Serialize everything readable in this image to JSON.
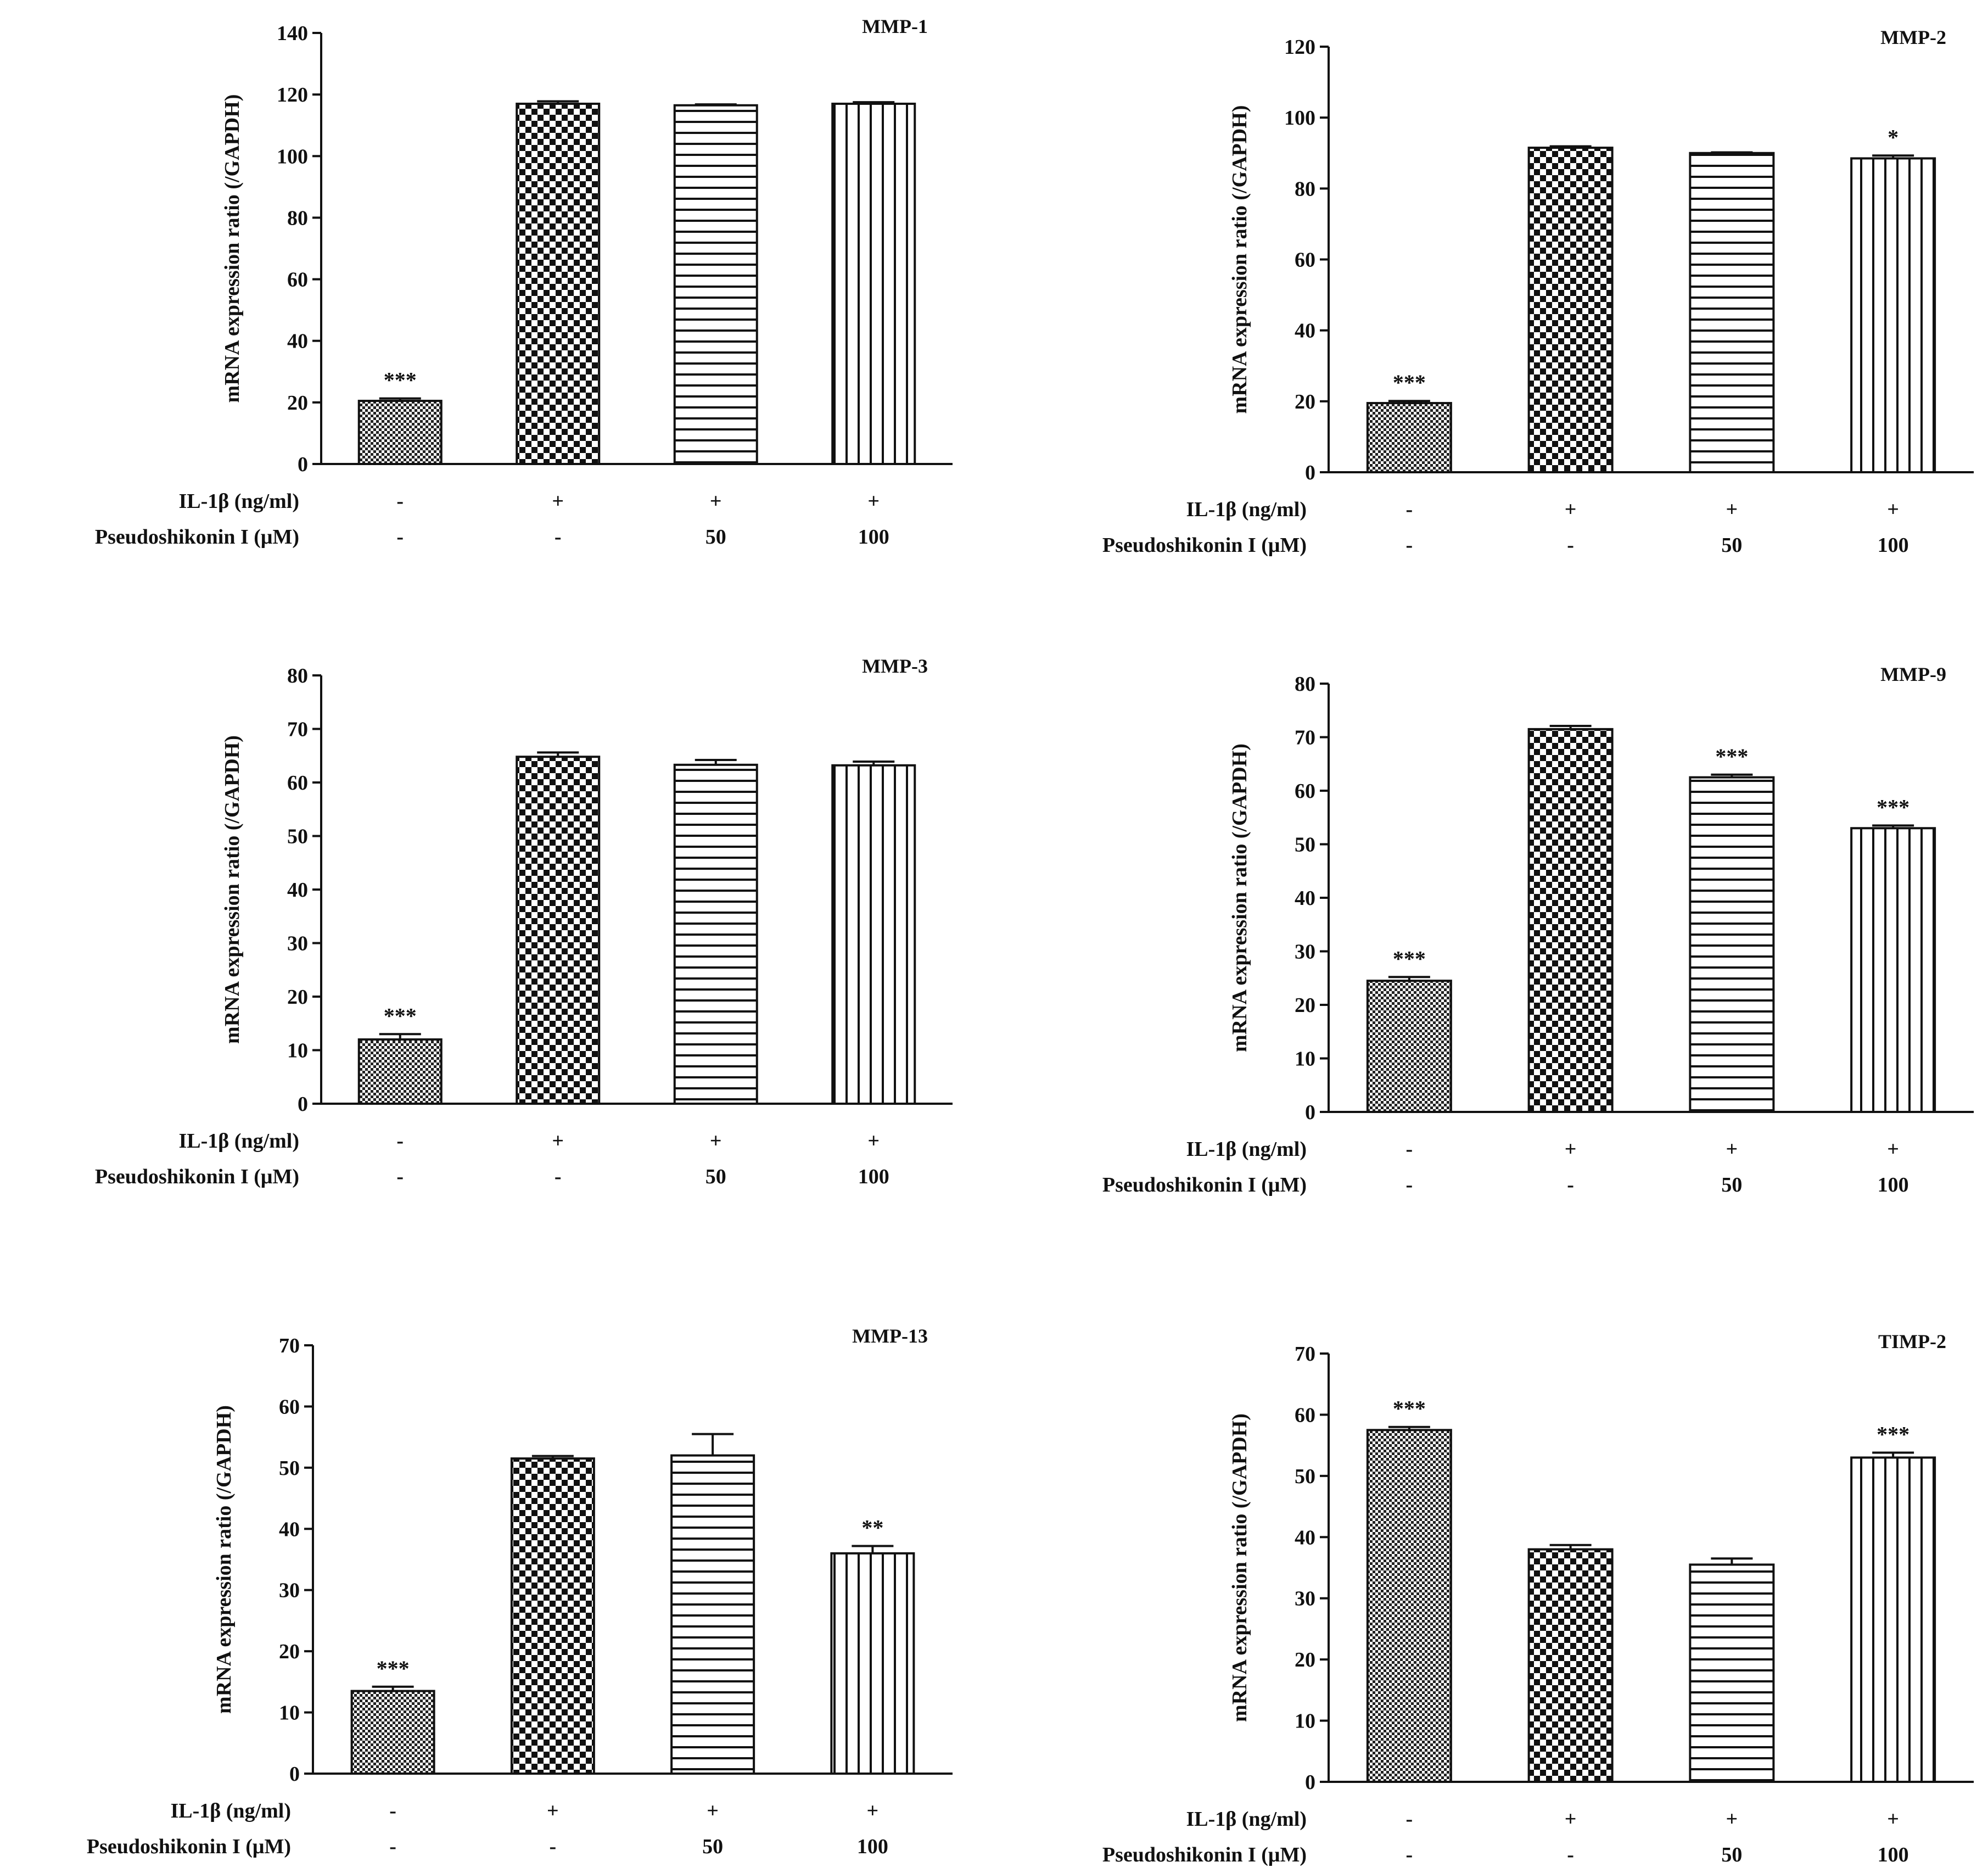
{
  "row_labels": {
    "il1b": "IL-1β (ng/ml)",
    "pseudoshikonin": "Pseudoshikonin I (μM)"
  },
  "groups": [
    {
      "il1b": "-",
      "pseudoshikonin": "-"
    },
    {
      "il1b": "+",
      "pseudoshikonin": "-"
    },
    {
      "il1b": "+",
      "pseudoshikonin": "50"
    },
    {
      "il1b": "+",
      "pseudoshikonin": "100"
    }
  ],
  "patterns": [
    "fine-check",
    "checker",
    "horizontal-lines",
    "vertical-lines"
  ],
  "chart_data": [
    {
      "type": "bar",
      "title": "MMP-1",
      "ylabel": "mRNA expression ratio (/GAPDH)",
      "ylim": [
        0,
        140
      ],
      "yticks": [
        0,
        20,
        40,
        60,
        80,
        100,
        120,
        140
      ],
      "values": [
        20.5,
        117,
        116.5,
        117
      ],
      "errors": [
        0.8,
        0.8,
        0.3,
        0.5
      ],
      "significance": [
        "***",
        "",
        "",
        ""
      ]
    },
    {
      "type": "bar",
      "title": "MMP-2",
      "ylabel": "mRNA expression ratio (/GAPDH)",
      "ylim": [
        0,
        120
      ],
      "yticks": [
        0,
        20,
        40,
        60,
        80,
        100,
        120
      ],
      "values": [
        19.5,
        91.5,
        90,
        88.5
      ],
      "errors": [
        0.6,
        0.4,
        0.2,
        0.8
      ],
      "significance": [
        "***",
        "",
        "",
        "*"
      ]
    },
    {
      "type": "bar",
      "title": "MMP-3",
      "ylabel": "mRNA expression ratio (/GAPDH)",
      "ylim": [
        0,
        80
      ],
      "yticks": [
        0,
        10,
        20,
        30,
        40,
        50,
        60,
        70,
        80
      ],
      "values": [
        12,
        64.8,
        63.3,
        63.2
      ],
      "errors": [
        1.0,
        0.8,
        0.9,
        0.7
      ],
      "significance": [
        "***",
        "",
        "",
        ""
      ]
    },
    {
      "type": "bar",
      "title": "MMP-9",
      "ylabel": "mRNA expression ratio (/GAPDH)",
      "ylim": [
        0,
        80
      ],
      "yticks": [
        0,
        10,
        20,
        30,
        40,
        50,
        60,
        70,
        80
      ],
      "values": [
        24.5,
        71.5,
        62.5,
        53
      ],
      "errors": [
        0.7,
        0.6,
        0.5,
        0.5
      ],
      "significance": [
        "***",
        "",
        "***",
        "***"
      ]
    },
    {
      "type": "bar",
      "title": "MMP-13",
      "ylabel": "mRNA expression ratio (/GAPDH)",
      "ylim": [
        0,
        70
      ],
      "yticks": [
        0,
        10,
        20,
        30,
        40,
        50,
        60,
        70
      ],
      "values": [
        13.5,
        51.5,
        52,
        36
      ],
      "errors": [
        0.7,
        0.4,
        3.5,
        1.2
      ],
      "significance": [
        "***",
        "",
        "",
        "**"
      ]
    },
    {
      "type": "bar",
      "title": "TIMP-2",
      "ylabel": "mRNA expression ratio (/GAPDH)",
      "ylim": [
        0,
        70
      ],
      "yticks": [
        0,
        10,
        20,
        30,
        40,
        50,
        60,
        70
      ],
      "values": [
        57.5,
        38,
        35.5,
        53
      ],
      "errors": [
        0.5,
        0.7,
        1.0,
        0.8
      ],
      "significance": [
        "***",
        "",
        "",
        "***"
      ]
    }
  ]
}
